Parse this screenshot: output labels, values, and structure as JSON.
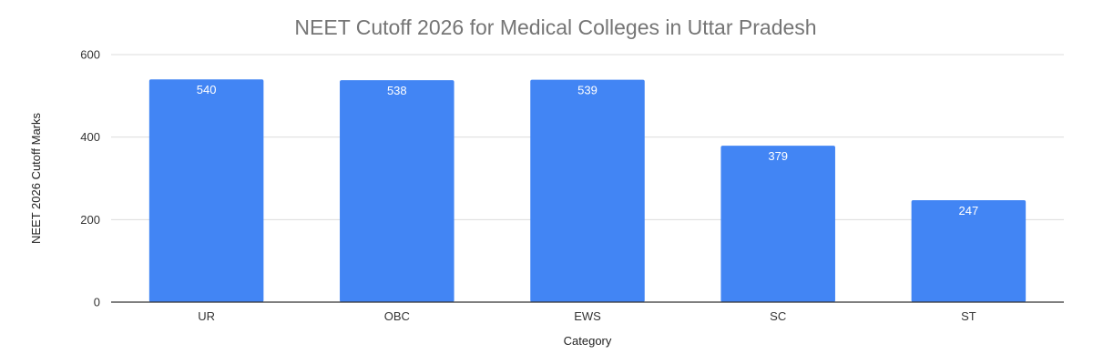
{
  "chart_data": {
    "type": "bar",
    "title": "NEET Cutoff 2026 for Medical Colleges in Uttar Pradesh",
    "xlabel": "Category",
    "ylabel": "NEET 2026 Cutoff Marks",
    "categories": [
      "UR",
      "OBC",
      "EWS",
      "SC",
      "ST"
    ],
    "values": [
      540,
      538,
      539,
      379,
      247
    ],
    "data_labels": [
      "540",
      "538",
      "539",
      "379",
      "247"
    ],
    "ylim": [
      0,
      600
    ],
    "yticks": [
      0,
      200,
      400,
      600
    ],
    "ytick_labels": [
      "0",
      "200",
      "400",
      "600"
    ],
    "grid": true,
    "legend": "none",
    "bar_color": "#4285f4"
  }
}
